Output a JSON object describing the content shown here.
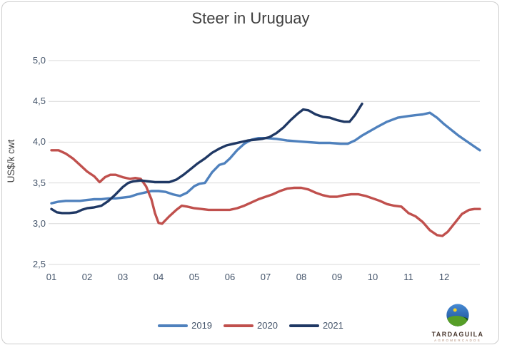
{
  "chart_data": {
    "type": "line",
    "title": "Steer in Uruguay",
    "ylabel": "US$/k cwt",
    "xlabel": "",
    "grid": "horizontal",
    "legend_position": "bottom",
    "x_axis": {
      "ticks": [
        "01",
        "02",
        "03",
        "04",
        "05",
        "06",
        "07",
        "08",
        "09",
        "10",
        "11",
        "12"
      ],
      "range_months": [
        1,
        13
      ]
    },
    "y_axis": {
      "ticks": [
        "5,0",
        "4,5",
        "4,0",
        "3,5",
        "3,0",
        "2,5"
      ],
      "tick_values": [
        5.0,
        4.5,
        4.0,
        3.5,
        3.0,
        2.5
      ],
      "range": [
        2.5,
        5.0
      ],
      "decimal_separator": "comma"
    },
    "series": [
      {
        "name": "2019",
        "color": "#4f81bd",
        "points": [
          [
            1,
            3.25
          ],
          [
            1.2,
            3.27
          ],
          [
            1.4,
            3.28
          ],
          [
            1.6,
            3.28
          ],
          [
            1.8,
            3.28
          ],
          [
            2,
            3.29
          ],
          [
            2.2,
            3.3
          ],
          [
            2.4,
            3.3
          ],
          [
            2.6,
            3.31
          ],
          [
            2.8,
            3.31
          ],
          [
            3,
            3.32
          ],
          [
            3.2,
            3.33
          ],
          [
            3.4,
            3.36
          ],
          [
            3.6,
            3.38
          ],
          [
            3.8,
            3.4
          ],
          [
            4,
            3.4
          ],
          [
            4.2,
            3.39
          ],
          [
            4.4,
            3.36
          ],
          [
            4.6,
            3.34
          ],
          [
            4.8,
            3.38
          ],
          [
            5,
            3.46
          ],
          [
            5.15,
            3.49
          ],
          [
            5.3,
            3.5
          ],
          [
            5.5,
            3.63
          ],
          [
            5.7,
            3.72
          ],
          [
            5.85,
            3.74
          ],
          [
            6,
            3.8
          ],
          [
            6.2,
            3.9
          ],
          [
            6.4,
            3.98
          ],
          [
            6.6,
            4.03
          ],
          [
            6.8,
            4.05
          ],
          [
            7,
            4.05
          ],
          [
            7.3,
            4.04
          ],
          [
            7.6,
            4.02
          ],
          [
            7.9,
            4.01
          ],
          [
            8.2,
            4.0
          ],
          [
            8.5,
            3.99
          ],
          [
            8.8,
            3.99
          ],
          [
            9.1,
            3.98
          ],
          [
            9.3,
            3.98
          ],
          [
            9.5,
            4.02
          ],
          [
            9.7,
            4.08
          ],
          [
            9.9,
            4.13
          ],
          [
            10.1,
            4.18
          ],
          [
            10.4,
            4.25
          ],
          [
            10.7,
            4.3
          ],
          [
            11,
            4.32
          ],
          [
            11.2,
            4.33
          ],
          [
            11.4,
            4.34
          ],
          [
            11.6,
            4.36
          ],
          [
            11.8,
            4.3
          ],
          [
            12,
            4.22
          ],
          [
            12.2,
            4.15
          ],
          [
            12.4,
            4.08
          ],
          [
            12.6,
            4.02
          ],
          [
            12.8,
            3.96
          ],
          [
            13,
            3.9
          ]
        ]
      },
      {
        "name": "2020",
        "color": "#c0504d",
        "points": [
          [
            1,
            3.9
          ],
          [
            1.2,
            3.9
          ],
          [
            1.4,
            3.86
          ],
          [
            1.6,
            3.8
          ],
          [
            1.8,
            3.72
          ],
          [
            2,
            3.64
          ],
          [
            2.2,
            3.58
          ],
          [
            2.35,
            3.51
          ],
          [
            2.5,
            3.57
          ],
          [
            2.65,
            3.6
          ],
          [
            2.8,
            3.6
          ],
          [
            3,
            3.57
          ],
          [
            3.2,
            3.55
          ],
          [
            3.35,
            3.56
          ],
          [
            3.5,
            3.55
          ],
          [
            3.65,
            3.46
          ],
          [
            3.8,
            3.3
          ],
          [
            3.9,
            3.13
          ],
          [
            4,
            3.01
          ],
          [
            4.1,
            3.0
          ],
          [
            4.3,
            3.09
          ],
          [
            4.5,
            3.17
          ],
          [
            4.65,
            3.22
          ],
          [
            4.8,
            3.21
          ],
          [
            5,
            3.19
          ],
          [
            5.2,
            3.18
          ],
          [
            5.4,
            3.17
          ],
          [
            5.6,
            3.17
          ],
          [
            5.8,
            3.17
          ],
          [
            6,
            3.17
          ],
          [
            6.2,
            3.19
          ],
          [
            6.4,
            3.22
          ],
          [
            6.6,
            3.26
          ],
          [
            6.8,
            3.3
          ],
          [
            7,
            3.33
          ],
          [
            7.2,
            3.36
          ],
          [
            7.4,
            3.4
          ],
          [
            7.6,
            3.43
          ],
          [
            7.8,
            3.44
          ],
          [
            8,
            3.44
          ],
          [
            8.2,
            3.42
          ],
          [
            8.4,
            3.38
          ],
          [
            8.6,
            3.35
          ],
          [
            8.8,
            3.33
          ],
          [
            9,
            3.33
          ],
          [
            9.2,
            3.35
          ],
          [
            9.4,
            3.36
          ],
          [
            9.6,
            3.36
          ],
          [
            9.8,
            3.34
          ],
          [
            10,
            3.31
          ],
          [
            10.2,
            3.28
          ],
          [
            10.4,
            3.24
          ],
          [
            10.6,
            3.22
          ],
          [
            10.8,
            3.21
          ],
          [
            11,
            3.13
          ],
          [
            11.2,
            3.09
          ],
          [
            11.4,
            3.02
          ],
          [
            11.6,
            2.92
          ],
          [
            11.8,
            2.86
          ],
          [
            11.95,
            2.85
          ],
          [
            12.1,
            2.9
          ],
          [
            12.3,
            3.01
          ],
          [
            12.5,
            3.12
          ],
          [
            12.7,
            3.17
          ],
          [
            12.85,
            3.18
          ],
          [
            13,
            3.18
          ]
        ]
      },
      {
        "name": "2021",
        "color": "#1f3864",
        "points": [
          [
            1,
            3.18
          ],
          [
            1.15,
            3.14
          ],
          [
            1.3,
            3.13
          ],
          [
            1.5,
            3.13
          ],
          [
            1.7,
            3.14
          ],
          [
            1.85,
            3.17
          ],
          [
            2,
            3.19
          ],
          [
            2.2,
            3.2
          ],
          [
            2.4,
            3.22
          ],
          [
            2.6,
            3.28
          ],
          [
            2.8,
            3.36
          ],
          [
            3,
            3.45
          ],
          [
            3.15,
            3.5
          ],
          [
            3.3,
            3.52
          ],
          [
            3.5,
            3.53
          ],
          [
            3.7,
            3.52
          ],
          [
            3.9,
            3.51
          ],
          [
            4.1,
            3.51
          ],
          [
            4.3,
            3.51
          ],
          [
            4.5,
            3.54
          ],
          [
            4.7,
            3.6
          ],
          [
            4.9,
            3.67
          ],
          [
            5.1,
            3.74
          ],
          [
            5.3,
            3.8
          ],
          [
            5.5,
            3.87
          ],
          [
            5.7,
            3.92
          ],
          [
            5.9,
            3.96
          ],
          [
            6.1,
            3.98
          ],
          [
            6.3,
            4.0
          ],
          [
            6.5,
            4.02
          ],
          [
            6.7,
            4.03
          ],
          [
            6.9,
            4.04
          ],
          [
            7.1,
            4.06
          ],
          [
            7.3,
            4.11
          ],
          [
            7.5,
            4.18
          ],
          [
            7.7,
            4.27
          ],
          [
            7.9,
            4.35
          ],
          [
            8.05,
            4.4
          ],
          [
            8.2,
            4.39
          ],
          [
            8.4,
            4.34
          ],
          [
            8.6,
            4.31
          ],
          [
            8.8,
            4.3
          ],
          [
            9,
            4.27
          ],
          [
            9.2,
            4.25
          ],
          [
            9.35,
            4.25
          ],
          [
            9.5,
            4.33
          ],
          [
            9.7,
            4.47
          ]
        ]
      }
    ]
  },
  "colors": {
    "grid": "#d9d9d9",
    "title": "#3f3f3f",
    "axis_label": "#44546a",
    "border": "#cdcdcd",
    "background": "#ffffff"
  },
  "branding": {
    "name": "TARDAGUILA",
    "subtext": "AGROMERCADOS"
  }
}
